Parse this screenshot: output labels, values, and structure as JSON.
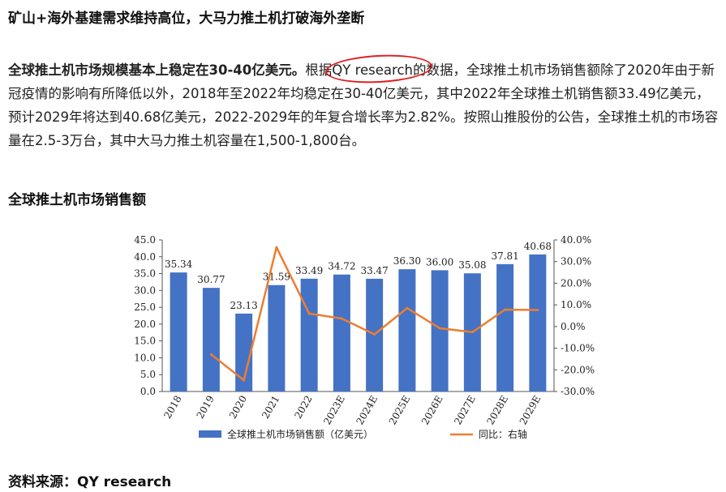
{
  "heading": "矿山+海外基建需求维持高位，大马力推土机打破海外垄断",
  "paragraph": {
    "bold_lead": "全球推土机市场规模基本上稳定在30-40亿美元。",
    "text_before": "根据",
    "highlight": "QY research",
    "text_after": "的数据，全球推土机市场销售额除了2020年由于新冠疫情的影响有所降低以外，2018年至2022年均稳定在30-40亿美元，其中2022年全球推土机销售额33.49亿美元，预计2029年将达到40.68亿美元，2022-2029年的年复合增长率为2.82%。按照山推股份的公告，全球推土机的市场容量在2.5-3万台，其中大马力推土机容量在1,500-1,800台。"
  },
  "chart_title": "全球推土机市场销售额",
  "source": "资料来源：QY research",
  "chart_data": {
    "type": "bar",
    "categories": [
      "2018",
      "2019",
      "2020",
      "2021",
      "2022",
      "2023E",
      "2024E",
      "2025E",
      "2026E",
      "2027E",
      "2028E",
      "2029E"
    ],
    "series": [
      {
        "name": "全球推土机市场销售额（亿美元）",
        "type": "bar",
        "axis": "left",
        "values": [
          35.34,
          30.77,
          23.13,
          31.59,
          33.49,
          34.72,
          33.47,
          36.3,
          36.0,
          35.08,
          37.81,
          40.68
        ],
        "labels": [
          "35.34",
          "30.77",
          "23.13",
          "31.59",
          "33.49",
          "34.72",
          "33.47",
          "36.30",
          "36.00",
          "35.08",
          "37.81",
          "40.68"
        ],
        "color": "#4472c4"
      },
      {
        "name": "同比：右轴",
        "type": "line",
        "axis": "right",
        "values": [
          null,
          -12.9,
          -24.8,
          36.6,
          6.0,
          3.7,
          -3.6,
          8.5,
          -0.8,
          -2.6,
          7.8,
          7.6
        ],
        "color": "#ed7d31"
      }
    ],
    "ylim_left": [
      0,
      45
    ],
    "left_ticks": [
      "0.0",
      "5.0",
      "10.0",
      "15.0",
      "20.0",
      "25.0",
      "30.0",
      "35.0",
      "40.0",
      "45.0"
    ],
    "ylim_right": [
      -30,
      40
    ],
    "right_ticks": [
      "-30.0%",
      "-20.0%",
      "-10.0%",
      "0.0%",
      "10.0%",
      "20.0%",
      "30.0%",
      "40.0%"
    ],
    "legend_position": "bottom",
    "grid": false
  }
}
